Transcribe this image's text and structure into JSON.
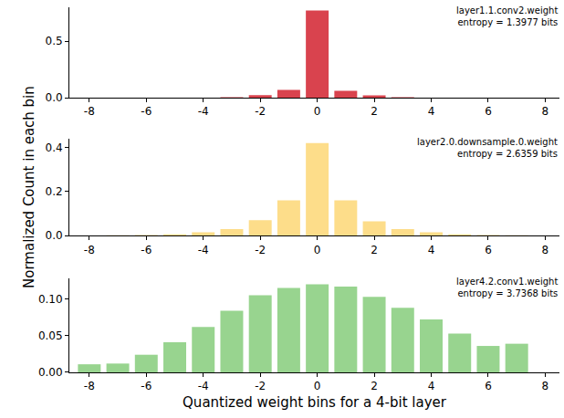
{
  "x_label": "Quantized weight bins for a 4-bit layer",
  "y_label": "Normalized Count in each bin",
  "chart_data": [
    {
      "type": "bar",
      "annotations": [
        "layer1.1.conv2.weight",
        "entropy = 1.3977 bits"
      ],
      "x": [
        -8,
        -7,
        -6,
        -5,
        -4,
        -3,
        -2,
        -1,
        0,
        1,
        2,
        3,
        4,
        5,
        6,
        7
      ],
      "values": [
        0,
        0,
        0,
        0,
        0.001,
        0.005,
        0.022,
        0.07,
        0.77,
        0.06,
        0.02,
        0.004,
        0.001,
        0,
        0,
        0
      ],
      "color": "#d9434e",
      "xlim": [
        -8.7,
        8.5
      ],
      "xticks": [
        -8,
        -6,
        -4,
        -2,
        0,
        2,
        4,
        6,
        8
      ],
      "ylim": [
        0,
        0.8
      ],
      "yticks": [
        {
          "value": 0,
          "label": "0.0"
        },
        {
          "value": 0.5,
          "label": "0.5"
        }
      ]
    },
    {
      "type": "bar",
      "annotations": [
        "layer2.0.downsample.0.weight",
        "entropy = 2.6359 bits"
      ],
      "x": [
        -8,
        -7,
        -6,
        -5,
        -4,
        -3,
        -2,
        -1,
        0,
        1,
        2,
        3,
        4,
        5,
        6,
        7
      ],
      "values": [
        0.001,
        0.002,
        0.003,
        0.006,
        0.015,
        0.03,
        0.07,
        0.16,
        0.42,
        0.16,
        0.065,
        0.03,
        0.015,
        0.006,
        0.003,
        0.002
      ],
      "color": "#fddd8a",
      "xlim": [
        -8.7,
        8.5
      ],
      "xticks": [
        -8,
        -6,
        -4,
        -2,
        0,
        2,
        4,
        6,
        8
      ],
      "ylim": [
        0,
        0.44
      ],
      "yticks": [
        {
          "value": 0,
          "label": "0.0"
        },
        {
          "value": 0.2,
          "label": "0.2"
        },
        {
          "value": 0.4,
          "label": "0.4"
        }
      ]
    },
    {
      "type": "bar",
      "annotations": [
        "layer4.2.conv1.weight",
        "entropy = 3.7368 bits"
      ],
      "x": [
        -8,
        -7,
        -6,
        -5,
        -4,
        -3,
        -2,
        -1,
        0,
        1,
        2,
        3,
        4,
        5,
        6,
        7
      ],
      "values": [
        0.011,
        0.012,
        0.024,
        0.041,
        0.062,
        0.084,
        0.105,
        0.115,
        0.12,
        0.117,
        0.103,
        0.088,
        0.072,
        0.053,
        0.036,
        0.039
      ],
      "color": "#98d48f",
      "xlim": [
        -8.7,
        8.5
      ],
      "xticks": [
        -8,
        -6,
        -4,
        -2,
        0,
        2,
        4,
        6,
        8
      ],
      "ylim": [
        0,
        0.128
      ],
      "yticks": [
        {
          "value": 0,
          "label": "0.00"
        },
        {
          "value": 0.05,
          "label": "0.05"
        },
        {
          "value": 0.1,
          "label": "0.10"
        }
      ]
    }
  ]
}
